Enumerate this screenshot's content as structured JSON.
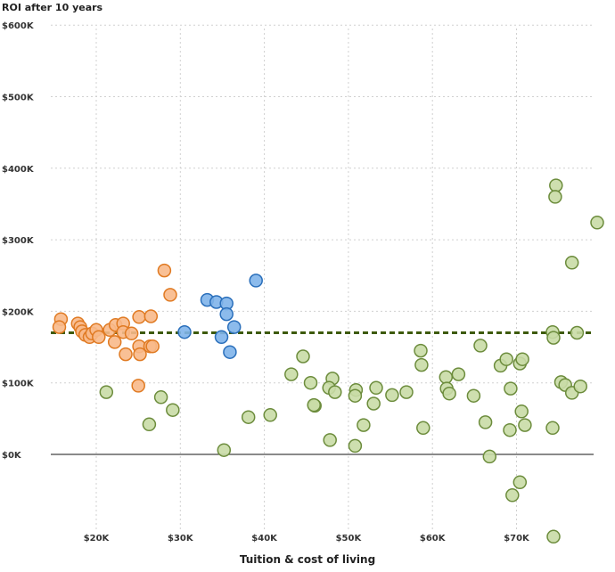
{
  "chart_data": {
    "type": "scatter",
    "title": "",
    "ylabel": "ROI after 10 years",
    "xlabel": "Tuition & cost of living",
    "xlim": [
      14,
      80
    ],
    "ylim": [
      -120,
      600
    ],
    "x_unit": "$K",
    "y_unit": "$K",
    "grid": true,
    "x_ticks": [
      {
        "value": 20,
        "label": "$20K"
      },
      {
        "value": 30,
        "label": "$30K"
      },
      {
        "value": 40,
        "label": "$40K"
      },
      {
        "value": 50,
        "label": "$50K"
      },
      {
        "value": 60,
        "label": "$60K"
      },
      {
        "value": 70,
        "label": "$70K"
      }
    ],
    "y_ticks": [
      {
        "value": 600,
        "label": "$600K"
      },
      {
        "value": 500,
        "label": "$500K"
      },
      {
        "value": 400,
        "label": "$400K"
      },
      {
        "value": 300,
        "label": "$300K"
      },
      {
        "value": 200,
        "label": "$200K"
      },
      {
        "value": 100,
        "label": "$100K"
      },
      {
        "value": 0,
        "label": "$0K"
      }
    ],
    "reference_line": {
      "y": 170,
      "color": "#3d5a0a",
      "style": "dashed"
    },
    "series": [
      {
        "name": "orange",
        "fill": "#f8b98a",
        "stroke": "#e07a22",
        "points": [
          [
            15.8,
            189
          ],
          [
            15.6,
            178
          ],
          [
            17.8,
            183
          ],
          [
            18.1,
            178
          ],
          [
            18.3,
            172
          ],
          [
            18.7,
            167
          ],
          [
            19.2,
            164
          ],
          [
            19.5,
            169
          ],
          [
            20.0,
            174
          ],
          [
            20.3,
            164
          ],
          [
            21.6,
            174
          ],
          [
            22.3,
            181
          ],
          [
            23.2,
            183
          ],
          [
            23.2,
            171
          ],
          [
            24.2,
            169
          ],
          [
            22.2,
            157
          ],
          [
            23.5,
            140
          ],
          [
            25.1,
            192
          ],
          [
            25.1,
            151
          ],
          [
            25.2,
            140
          ],
          [
            25.0,
            96
          ],
          [
            26.4,
            151
          ],
          [
            26.7,
            151
          ],
          [
            26.5,
            193
          ],
          [
            28.1,
            257
          ],
          [
            28.8,
            223
          ]
        ]
      },
      {
        "name": "blue",
        "fill": "#80b4ea",
        "stroke": "#2a6fbb",
        "points": [
          [
            30.5,
            171
          ],
          [
            33.2,
            216
          ],
          [
            34.3,
            213
          ],
          [
            35.5,
            211
          ],
          [
            35.5,
            196
          ],
          [
            36.4,
            178
          ],
          [
            34.9,
            164
          ],
          [
            35.9,
            143
          ],
          [
            39.0,
            243
          ]
        ]
      },
      {
        "name": "green",
        "fill": "#c9dca6",
        "stroke": "#6c8c3c",
        "points": [
          [
            21.2,
            87
          ],
          [
            27.7,
            80
          ],
          [
            29.1,
            62
          ],
          [
            26.3,
            42
          ],
          [
            35.2,
            6
          ],
          [
            38.1,
            52
          ],
          [
            40.7,
            55
          ],
          [
            44.6,
            137
          ],
          [
            43.2,
            112
          ],
          [
            45.5,
            100
          ],
          [
            48.1,
            106
          ],
          [
            47.7,
            93
          ],
          [
            48.4,
            87
          ],
          [
            46.0,
            68
          ],
          [
            45.9,
            69
          ],
          [
            50.9,
            90
          ],
          [
            50.8,
            82
          ],
          [
            53.3,
            93
          ],
          [
            53.0,
            71
          ],
          [
            55.2,
            83
          ],
          [
            56.9,
            87
          ],
          [
            58.6,
            145
          ],
          [
            58.7,
            125
          ],
          [
            51.8,
            41
          ],
          [
            47.8,
            20
          ],
          [
            50.8,
            12
          ],
          [
            58.9,
            37
          ],
          [
            61.6,
            108
          ],
          [
            61.7,
            92
          ],
          [
            62.0,
            85
          ],
          [
            63.1,
            112
          ],
          [
            65.7,
            152
          ],
          [
            68.1,
            124
          ],
          [
            68.8,
            133
          ],
          [
            70.4,
            127
          ],
          [
            70.7,
            133
          ],
          [
            64.9,
            82
          ],
          [
            69.3,
            92
          ],
          [
            66.3,
            45
          ],
          [
            69.2,
            34
          ],
          [
            70.6,
            60
          ],
          [
            71.0,
            41
          ],
          [
            66.8,
            -3
          ],
          [
            70.4,
            -39
          ],
          [
            69.5,
            -57
          ],
          [
            74.4,
            -115
          ],
          [
            74.7,
            376
          ],
          [
            74.6,
            360
          ],
          [
            79.6,
            324
          ],
          [
            76.6,
            268
          ],
          [
            74.3,
            171
          ],
          [
            74.4,
            163
          ],
          [
            77.2,
            170
          ],
          [
            75.3,
            101
          ],
          [
            75.8,
            97
          ],
          [
            76.6,
            86
          ],
          [
            77.6,
            95
          ],
          [
            74.3,
            37
          ]
        ]
      }
    ]
  }
}
